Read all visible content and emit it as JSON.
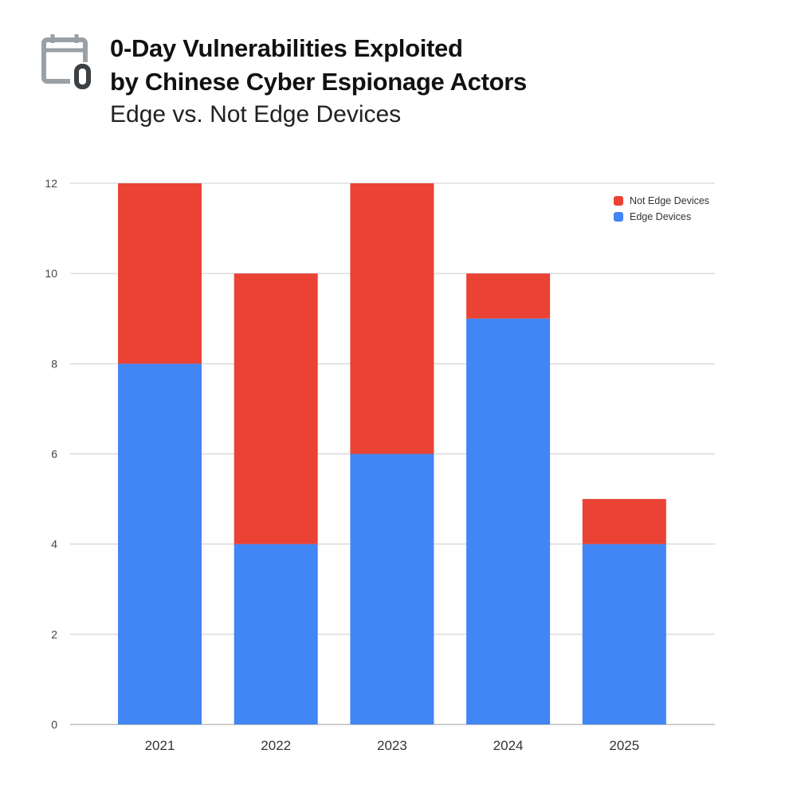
{
  "header": {
    "title_line1": "0-Day Vulnerabilities Exploited",
    "title_line2": "by Chinese Cyber Espionage Actors",
    "subtitle": "Edge vs. Not Edge Devices",
    "icon": "calendar-zero-icon"
  },
  "chart_data": {
    "type": "bar",
    "stacked": true,
    "title": "0-Day Vulnerabilities Exploited by Chinese Cyber Espionage Actors",
    "subtitle": "Edge vs. Not Edge Devices",
    "categories": [
      "2021",
      "2022",
      "2023",
      "2024",
      "2025"
    ],
    "series": [
      {
        "name": "Edge Devices",
        "color": "#4285F4",
        "values": [
          8,
          4,
          6,
          9,
          4
        ]
      },
      {
        "name": "Not Edge Devices",
        "color": "#EA4335",
        "values": [
          4,
          6,
          6,
          1,
          1
        ]
      }
    ],
    "ylim": [
      0,
      12
    ],
    "yticks": [
      "0",
      "2",
      "4",
      "6",
      "8",
      "10",
      "12"
    ],
    "grid": true,
    "legend": "top-right",
    "legend_order": [
      "Not Edge Devices",
      "Edge Devices"
    ]
  }
}
